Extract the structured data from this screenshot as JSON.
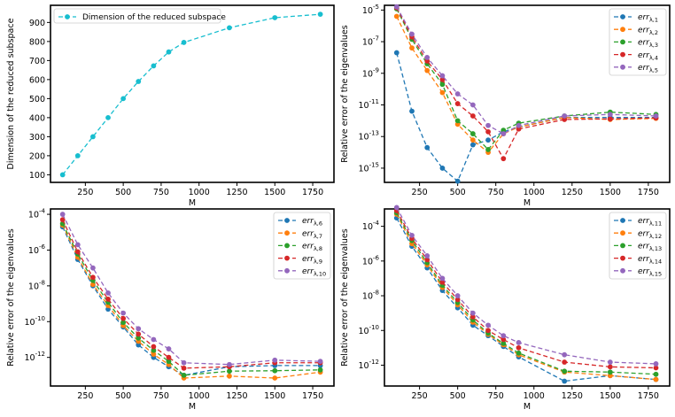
{
  "chart_data": [
    {
      "type": "line",
      "title": "",
      "xlabel": "M",
      "ylabel": "Dimension of the reduced subspace",
      "yscale": "linear",
      "xlim": [
        20,
        1890
      ],
      "ylim": [
        60,
        990
      ],
      "xticks": [
        250,
        500,
        750,
        1000,
        1250,
        1500,
        1750
      ],
      "yticks": [
        100,
        200,
        300,
        400,
        500,
        600,
        700,
        800,
        900
      ],
      "legend_loc": "upper-left",
      "x": [
        100,
        200,
        300,
        400,
        500,
        600,
        700,
        800,
        900,
        1200,
        1500,
        1800
      ],
      "series": [
        {
          "name": "Dimension of the reduced subspace",
          "color": "#17becf",
          "values": [
            100,
            200,
            300,
            400,
            500,
            590,
            672,
            745,
            795,
            872,
            925,
            943
          ]
        }
      ]
    },
    {
      "type": "line",
      "title": "",
      "xlabel": "M",
      "ylabel": "Relative error of the eigenvalues",
      "yscale": "log",
      "xlim": [
        20,
        1890
      ],
      "ylim": [
        -15.9,
        -4.7
      ],
      "xticks": [
        250,
        500,
        750,
        1000,
        1250,
        1500,
        1750
      ],
      "yticks": [
        -15,
        -13,
        -11,
        -9,
        -7,
        -5
      ],
      "legend_loc": "upper-right",
      "x": [
        100,
        200,
        300,
        400,
        500,
        600,
        700,
        800,
        900,
        1200,
        1500,
        1800
      ],
      "series": [
        {
          "name": "λ,1",
          "color": "#1f77b4",
          "values": [
            2e-08,
            4e-12,
            2e-14,
            1e-15,
            1.5e-16,
            3e-14,
            6e-14,
            2e-13,
            4e-13,
            1.6e-12,
            1.6e-12,
            1.6e-12
          ]
        },
        {
          "name": "λ,2",
          "color": "#ff7f0e",
          "values": [
            4e-06,
            4e-08,
            1.5e-09,
            6e-11,
            6e-13,
            6e-14,
            1e-14,
            1.5e-13,
            4e-13,
            1.6e-12,
            1.2e-12,
            1.4e-12
          ]
        },
        {
          "name": "λ,3",
          "color": "#2ca02c",
          "values": [
            1.2e-05,
            1.4e-07,
            4e-09,
            2e-10,
            1e-12,
            1.5e-13,
            1.5e-14,
            2.5e-13,
            7e-13,
            2e-12,
            3.5e-12,
            2.5e-12
          ]
        },
        {
          "name": "λ,4",
          "color": "#d62728",
          "values": [
            1.4e-05,
            2e-07,
            6e-09,
            4e-10,
            1.2e-11,
            2e-12,
            2e-13,
            4e-15,
            3e-13,
            1.2e-12,
            1.3e-12,
            1.5e-12
          ]
        },
        {
          "name": "λ,5",
          "color": "#9467bd",
          "values": [
            1.6e-05,
            3e-07,
            1e-08,
            7e-10,
            5e-11,
            1e-11,
            5e-13,
            1.5e-13,
            5e-13,
            2e-12,
            2.5e-12,
            2e-12
          ]
        }
      ]
    },
    {
      "type": "line",
      "title": "",
      "xlabel": "M",
      "ylabel": "Relative error of the eigenvalues",
      "yscale": "log",
      "xlim": [
        20,
        1890
      ],
      "ylim": [
        -13.6,
        -3.7
      ],
      "xticks": [
        250,
        500,
        750,
        1000,
        1250,
        1500,
        1750
      ],
      "yticks": [
        -12,
        -10,
        -8,
        -6,
        -4
      ],
      "legend_loc": "upper-right",
      "x": [
        100,
        200,
        300,
        400,
        500,
        600,
        700,
        800,
        900,
        1200,
        1500,
        1800
      ],
      "series": [
        {
          "name": "λ,6",
          "color": "#1f77b4",
          "values": [
            2e-05,
            3e-07,
            1e-08,
            5e-10,
            5e-11,
            5e-12,
            1e-12,
            3e-13,
            1e-13,
            3e-13,
            3.5e-13,
            3.5e-13
          ]
        },
        {
          "name": "λ,7",
          "color": "#ff7f0e",
          "values": [
            2.5e-05,
            4e-07,
            1.2e-08,
            8e-10,
            6e-11,
            8e-12,
            1.5e-12,
            4e-13,
            7e-14,
            9e-14,
            7e-14,
            1.5e-13
          ]
        },
        {
          "name": "λ,8",
          "color": "#2ca02c",
          "values": [
            3e-05,
            6e-07,
            2e-08,
            1.2e-09,
            9e-11,
            1.2e-11,
            2.5e-12,
            6e-13,
            1e-13,
            1.7e-13,
            1.8e-13,
            2e-13
          ]
        },
        {
          "name": "λ,9",
          "color": "#d62728",
          "values": [
            5e-05,
            8e-07,
            3e-08,
            1.8e-09,
            1.5e-10,
            2e-11,
            4e-12,
            1e-12,
            2.5e-13,
            3e-13,
            5e-13,
            5e-13
          ]
        },
        {
          "name": "λ,10",
          "color": "#9467bd",
          "values": [
            0.0001,
            2e-06,
            1e-07,
            4e-09,
            3e-10,
            4e-11,
            1e-11,
            3e-12,
            5e-13,
            4e-13,
            7e-13,
            6e-13
          ]
        }
      ]
    },
    {
      "type": "line",
      "title": "",
      "xlabel": "M",
      "ylabel": "Relative error of the eigenvalues",
      "yscale": "log",
      "xlim": [
        20,
        1890
      ],
      "ylim": [
        -13.2,
        -3.0
      ],
      "xticks": [
        250,
        500,
        750,
        1000,
        1250,
        1500,
        1750
      ],
      "yticks": [
        -12,
        -10,
        -8,
        -6,
        -4
      ],
      "legend_loc": "upper-right",
      "x": [
        100,
        200,
        300,
        400,
        500,
        600,
        700,
        800,
        900,
        1200,
        1500,
        1800
      ],
      "series": [
        {
          "name": "λ,11",
          "color": "#1f77b4",
          "values": [
            0.0003,
            7e-06,
            4e-07,
            2e-08,
            2e-09,
            2e-10,
            5e-11,
            1.2e-11,
            3e-12,
            1.2e-13,
            2.5e-13,
            1.5e-13
          ]
        },
        {
          "name": "λ,12",
          "color": "#ff7f0e",
          "values": [
            0.0005,
            1e-05,
            6e-07,
            3e-08,
            3e-09,
            3e-10,
            6e-11,
            1.5e-11,
            4e-12,
            4e-13,
            2.5e-13,
            1.5e-13
          ]
        },
        {
          "name": "λ,13",
          "color": "#2ca02c",
          "values": [
            0.0006,
            1.5e-05,
            8e-07,
            4e-08,
            4e-09,
            4e-10,
            7e-11,
            1.8e-11,
            5e-12,
            4.5e-13,
            4e-13,
            3e-13
          ]
        },
        {
          "name": "λ,14",
          "color": "#d62728",
          "values": [
            0.0008,
            2e-05,
            1.2e-06,
            6e-08,
            6e-09,
            6e-10,
            1e-10,
            3e-11,
            1e-11,
            1.5e-12,
            8e-13,
            7e-13
          ]
        },
        {
          "name": "λ,15",
          "color": "#9467bd",
          "values": [
            0.0012,
            3e-05,
            2e-06,
            1e-07,
            1e-08,
            1e-09,
            2e-10,
            5e-11,
            2e-11,
            4e-12,
            1.5e-12,
            1.2e-12
          ]
        }
      ]
    }
  ]
}
